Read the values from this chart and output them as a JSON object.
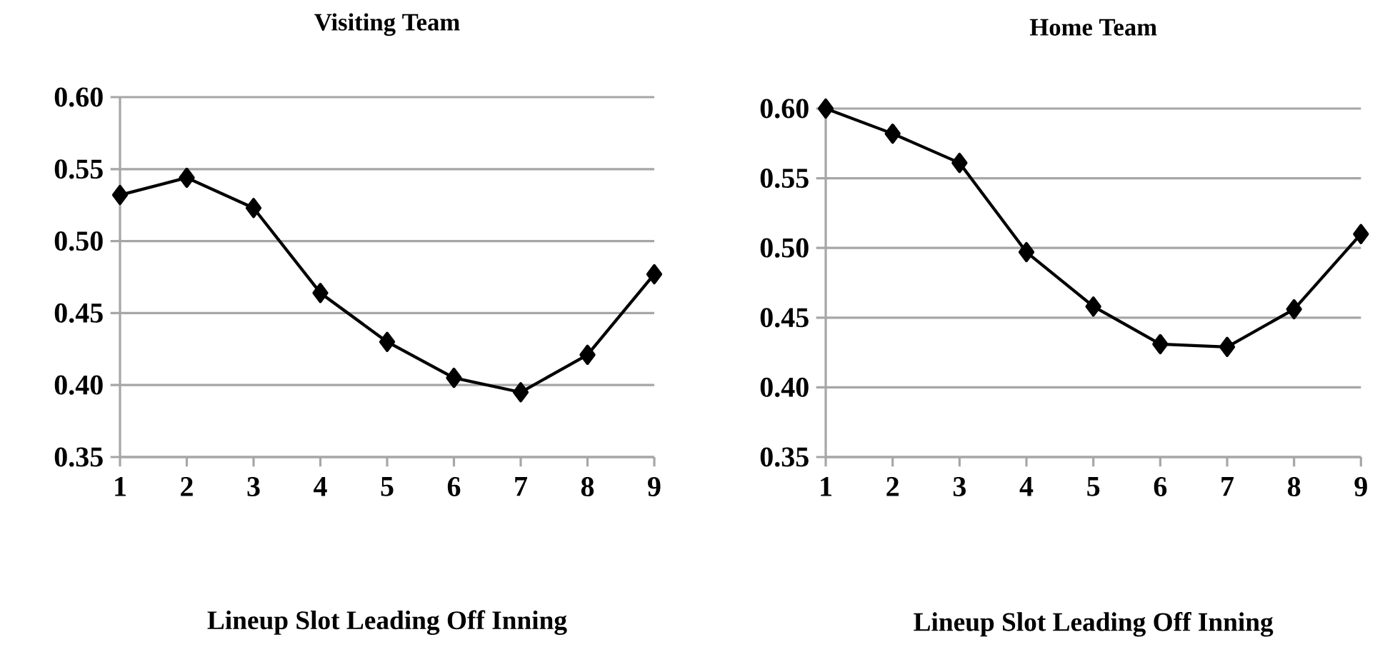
{
  "chart_data": [
    {
      "type": "line",
      "title": "Visiting Team",
      "xlabel": "Lineup Slot Leading Off Inning",
      "categories": [
        "1",
        "2",
        "3",
        "4",
        "5",
        "6",
        "7",
        "8",
        "9"
      ],
      "series": [
        {
          "color": "#000000",
          "values": [
            0.532,
            0.544,
            0.523,
            0.464,
            0.43,
            0.405,
            0.395,
            0.421,
            0.477
          ]
        }
      ],
      "ylim": [
        0.35,
        0.6
      ],
      "yticks": [
        0.35,
        {
          "value": 0.4,
          "label": "0.40"
        },
        0.45,
        {
          "value": 0.5,
          "label": "0.50"
        },
        0.55,
        {
          "value": 0.6,
          "label": "0.60"
        }
      ],
      "grid": "y",
      "marker": "diamond",
      "line_style": "solid"
    },
    {
      "type": "line",
      "title": "Home  Team",
      "xlabel": "Lineup Slot Leading Off Inning",
      "categories": [
        "1",
        "2",
        "3",
        "4",
        "5",
        "6",
        "7",
        "8",
        "9"
      ],
      "series": [
        {
          "color": "#000000",
          "values": [
            0.6,
            0.582,
            0.561,
            0.497,
            0.458,
            0.431,
            0.429,
            0.456,
            0.51
          ]
        }
      ],
      "ylim": [
        0.35,
        0.6
      ],
      "yticks": [
        0.35,
        {
          "value": 0.4,
          "label": "0.40"
        },
        0.45,
        {
          "value": 0.5,
          "label": "0.50"
        },
        0.55,
        {
          "value": 0.6,
          "label": "0.60"
        }
      ],
      "grid": "y",
      "marker": "diamond",
      "line_style": "solid"
    }
  ]
}
